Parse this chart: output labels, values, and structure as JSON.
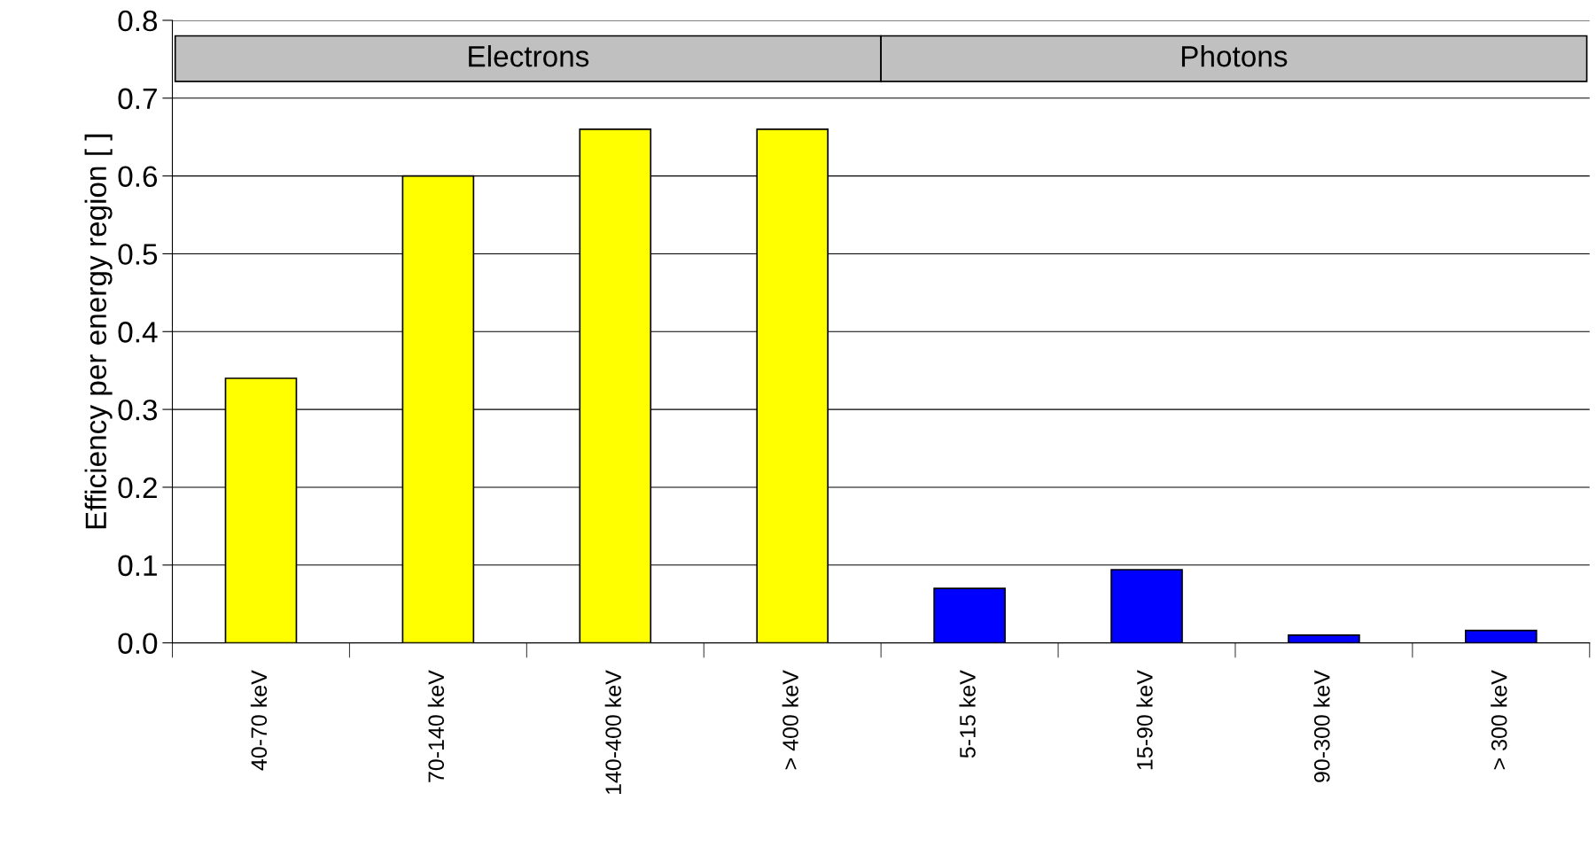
{
  "chart_data": {
    "type": "bar",
    "ylabel": "Efficiency per energy region [ ]",
    "categories": [
      "40-70 keV",
      "70-140 keV",
      "140-400 keV",
      "> 400 keV",
      "5-15 keV",
      "15-90 keV",
      "90-300 keV",
      "> 300 keV"
    ],
    "values": [
      0.34,
      0.6,
      0.66,
      0.66,
      0.07,
      0.094,
      0.01,
      0.016
    ],
    "colors": [
      "#ffff00",
      "#ffff00",
      "#ffff00",
      "#ffff00",
      "#0000ff",
      "#0000ff",
      "#0000ff",
      "#0000ff"
    ],
    "ylim": [
      0,
      0.8
    ],
    "yticks": [
      {
        "value": 0,
        "label": "0.0"
      },
      {
        "value": 0.1,
        "label": "0.1"
      },
      {
        "value": 0.2,
        "label": "0.2"
      },
      {
        "value": 0.3,
        "label": "0.3"
      },
      {
        "value": 0.4,
        "label": "0.4"
      },
      {
        "value": 0.5,
        "label": "0.5"
      },
      {
        "value": 0.6,
        "label": "0.6"
      },
      {
        "value": 0.7,
        "label": "0.7"
      },
      {
        "value": 0.8,
        "label": "0.8"
      }
    ],
    "grid": "y",
    "annotations": [
      "Electrons",
      "Photons"
    ]
  }
}
